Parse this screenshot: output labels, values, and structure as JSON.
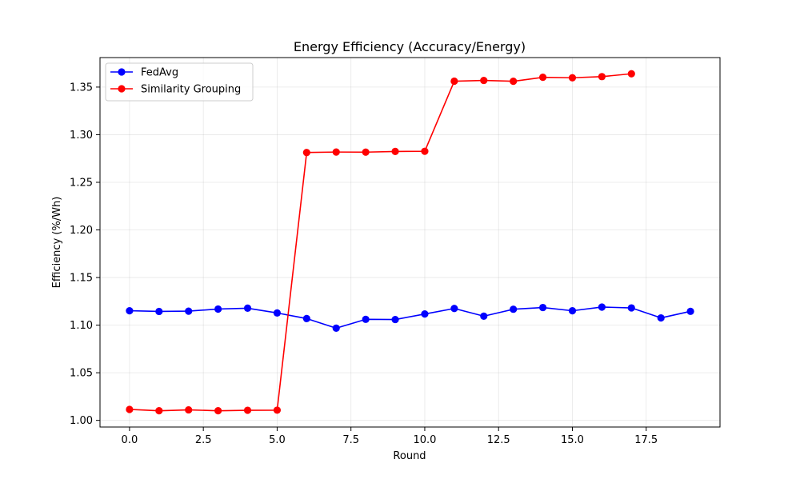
{
  "chart_data": {
    "type": "line",
    "title": "Energy Efficiency (Accuracy/Energy)",
    "xlabel": "Round",
    "ylabel": "Efficiency (%/Wh)",
    "xlim": [
      -1,
      20
    ],
    "ylim": [
      0.993,
      1.381
    ],
    "xticks": [
      "0.0",
      "2.5",
      "5.0",
      "7.5",
      "10.0",
      "12.5",
      "15.0",
      "17.5"
    ],
    "xtick_values": [
      0,
      2.5,
      5,
      7.5,
      10,
      12.5,
      15,
      17.5
    ],
    "yticks": [
      "1.00",
      "1.05",
      "1.10",
      "1.15",
      "1.20",
      "1.25",
      "1.30",
      "1.35"
    ],
    "ytick_values": [
      1.0,
      1.05,
      1.1,
      1.15,
      1.2,
      1.25,
      1.3,
      1.35
    ],
    "grid": true,
    "legend_position": "top-left",
    "series": [
      {
        "name": "FedAvg",
        "color": "#0000ff",
        "marker": "circle",
        "x": [
          0,
          1,
          2,
          3,
          4,
          5,
          6,
          7,
          8,
          9,
          10,
          11,
          12,
          13,
          14,
          15,
          16,
          17,
          18,
          19
        ],
        "values": [
          1.1151,
          1.1144,
          1.1147,
          1.1169,
          1.1178,
          1.1128,
          1.1069,
          1.0968,
          1.1061,
          1.1059,
          1.1117,
          1.1175,
          1.1094,
          1.1167,
          1.1185,
          1.1151,
          1.119,
          1.1181,
          1.1076,
          1.1145
        ]
      },
      {
        "name": "Similarity Grouping",
        "color": "#ff0000",
        "marker": "circle",
        "x": [
          0,
          1,
          2,
          3,
          4,
          5,
          6,
          7,
          8,
          9,
          10,
          11,
          12,
          13,
          14,
          15,
          16,
          17
        ],
        "values": [
          1.0115,
          1.0101,
          1.011,
          1.0101,
          1.0106,
          1.0107,
          1.2813,
          1.2818,
          1.2817,
          1.2824,
          1.2826,
          1.3562,
          1.357,
          1.3561,
          1.3603,
          1.3598,
          1.361,
          1.364
        ]
      }
    ]
  }
}
